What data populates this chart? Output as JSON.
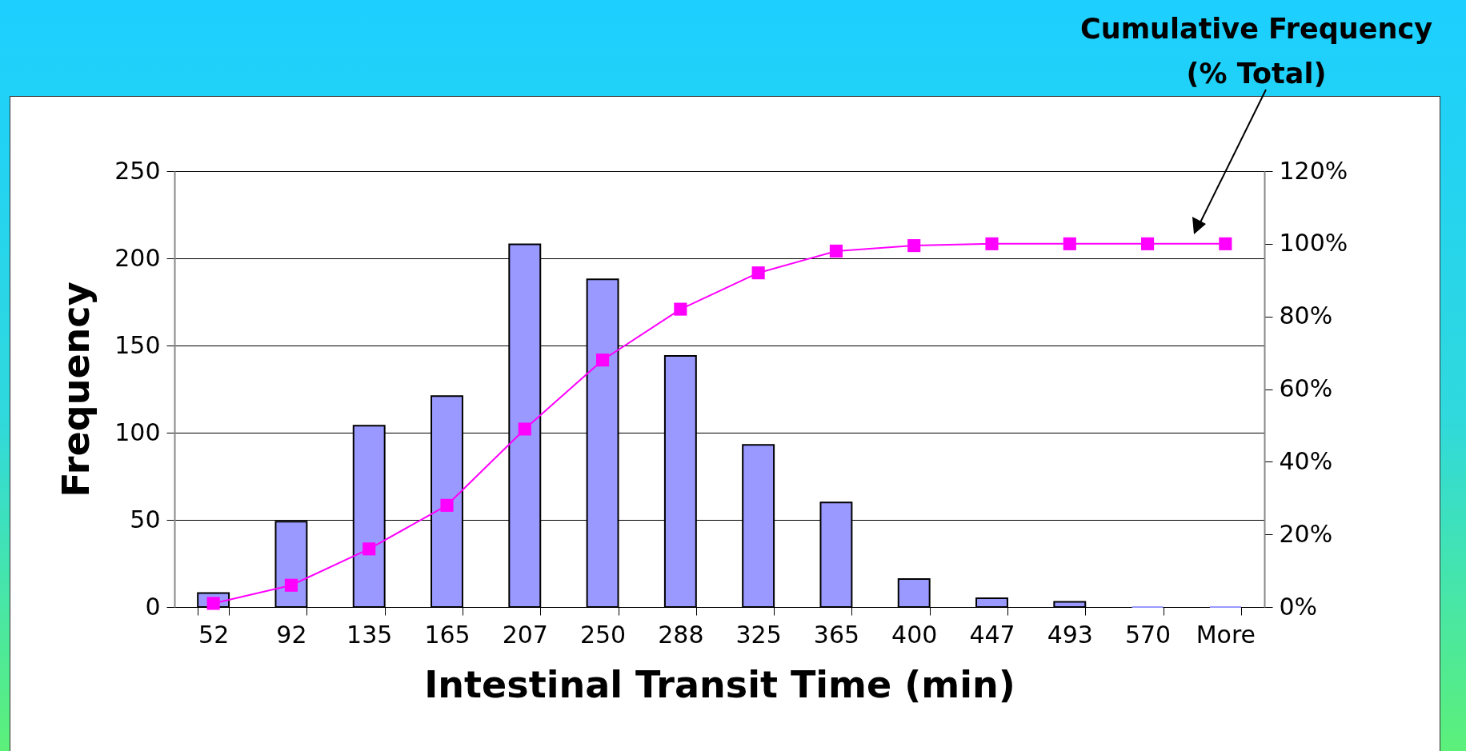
{
  "chart_data": {
    "type": "bar",
    "xlabel": "Intestinal Transit Time (min)",
    "ylabel": "Frequency",
    "categories": [
      "52",
      "92",
      "135",
      "165",
      "207",
      "250",
      "288",
      "325",
      "365",
      "400",
      "447",
      "493",
      "570",
      "More"
    ],
    "series": [
      {
        "color": "#9999ff",
        "values": [
          8,
          49,
          104,
          121,
          208,
          188,
          144,
          93,
          60,
          16,
          5,
          3,
          0,
          0
        ]
      },
      {
        "type": "line",
        "axis": "y2",
        "color": "#ff00ff",
        "marker": "square",
        "values": [
          1,
          6,
          16,
          28,
          49,
          68,
          82,
          92,
          98,
          99.5,
          100,
          100,
          100,
          100
        ]
      }
    ],
    "ylim": [
      0,
      250
    ],
    "yticks": [
      0,
      50,
      100,
      150,
      200,
      250
    ],
    "y2lim": [
      0,
      120
    ],
    "y2ticks": [
      {
        "value": 0,
        "label": "0%"
      },
      {
        "value": 20,
        "label": "20%"
      },
      {
        "value": 40,
        "label": "40%"
      },
      {
        "value": 60,
        "label": "60%"
      },
      {
        "value": 80,
        "label": "80%"
      },
      {
        "value": 100,
        "label": "100%"
      },
      {
        "value": 120,
        "label": "120%"
      }
    ],
    "grid": "y",
    "annotations": [
      "Cumulative Frequency (% Total)"
    ]
  }
}
